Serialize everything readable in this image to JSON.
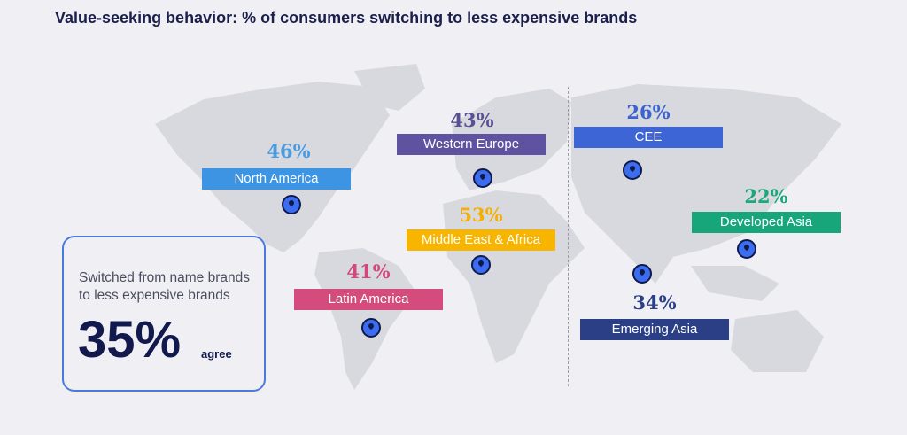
{
  "title": "Value-seeking behavior: % of consumers switching to less expensive brands",
  "regions": [
    {
      "name": "North America",
      "percent": "46%",
      "color": "#3d94e3"
    },
    {
      "name": "Western Europe",
      "percent": "43%",
      "color": "#5f52a0"
    },
    {
      "name": "Middle East & Africa",
      "percent": "53%",
      "color": "#f7b500"
    },
    {
      "name": "Latin America",
      "percent": "41%",
      "color": "#d34c7c"
    },
    {
      "name": "CEE",
      "percent": "26%",
      "color": "#3e65d6"
    },
    {
      "name": "Developed Asia",
      "percent": "22%",
      "color": "#17a57a"
    },
    {
      "name": "Emerging Asia",
      "percent": "34%",
      "color": "#2b3f86"
    }
  ],
  "summary": {
    "description": "Switched from name brands to less expensive brands",
    "value": "35%",
    "unit": "agree"
  },
  "icons": {
    "pin": "map-pin-icon"
  }
}
